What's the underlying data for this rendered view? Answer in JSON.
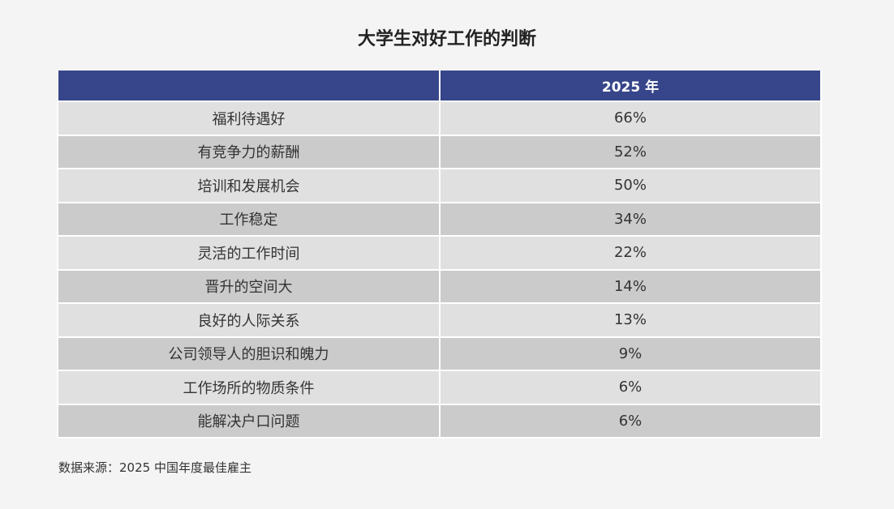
{
  "title": "大学生对好工作的判断",
  "header": {
    "col1": "",
    "col2": "2025 年"
  },
  "rows": [
    {
      "label": "福利待遇好",
      "value": "66%"
    },
    {
      "label": "有竞争力的薪酬",
      "value": "52%"
    },
    {
      "label": "培训和发展机会",
      "value": "50%"
    },
    {
      "label": "工作稳定",
      "value": "34%"
    },
    {
      "label": "灵活的工作时间",
      "value": "22%"
    },
    {
      "label": "晋升的空间大",
      "value": "14%"
    },
    {
      "label": "良好的人际关系",
      "value": "13%"
    },
    {
      "label": "公司领导人的胆识和魄力",
      "value": "9%"
    },
    {
      "label": "工作场所的物质条件",
      "value": "6%"
    },
    {
      "label": "能解决户口问题",
      "value": "6%"
    }
  ],
  "source": "数据来源：2025 中国年度最佳雇主"
}
